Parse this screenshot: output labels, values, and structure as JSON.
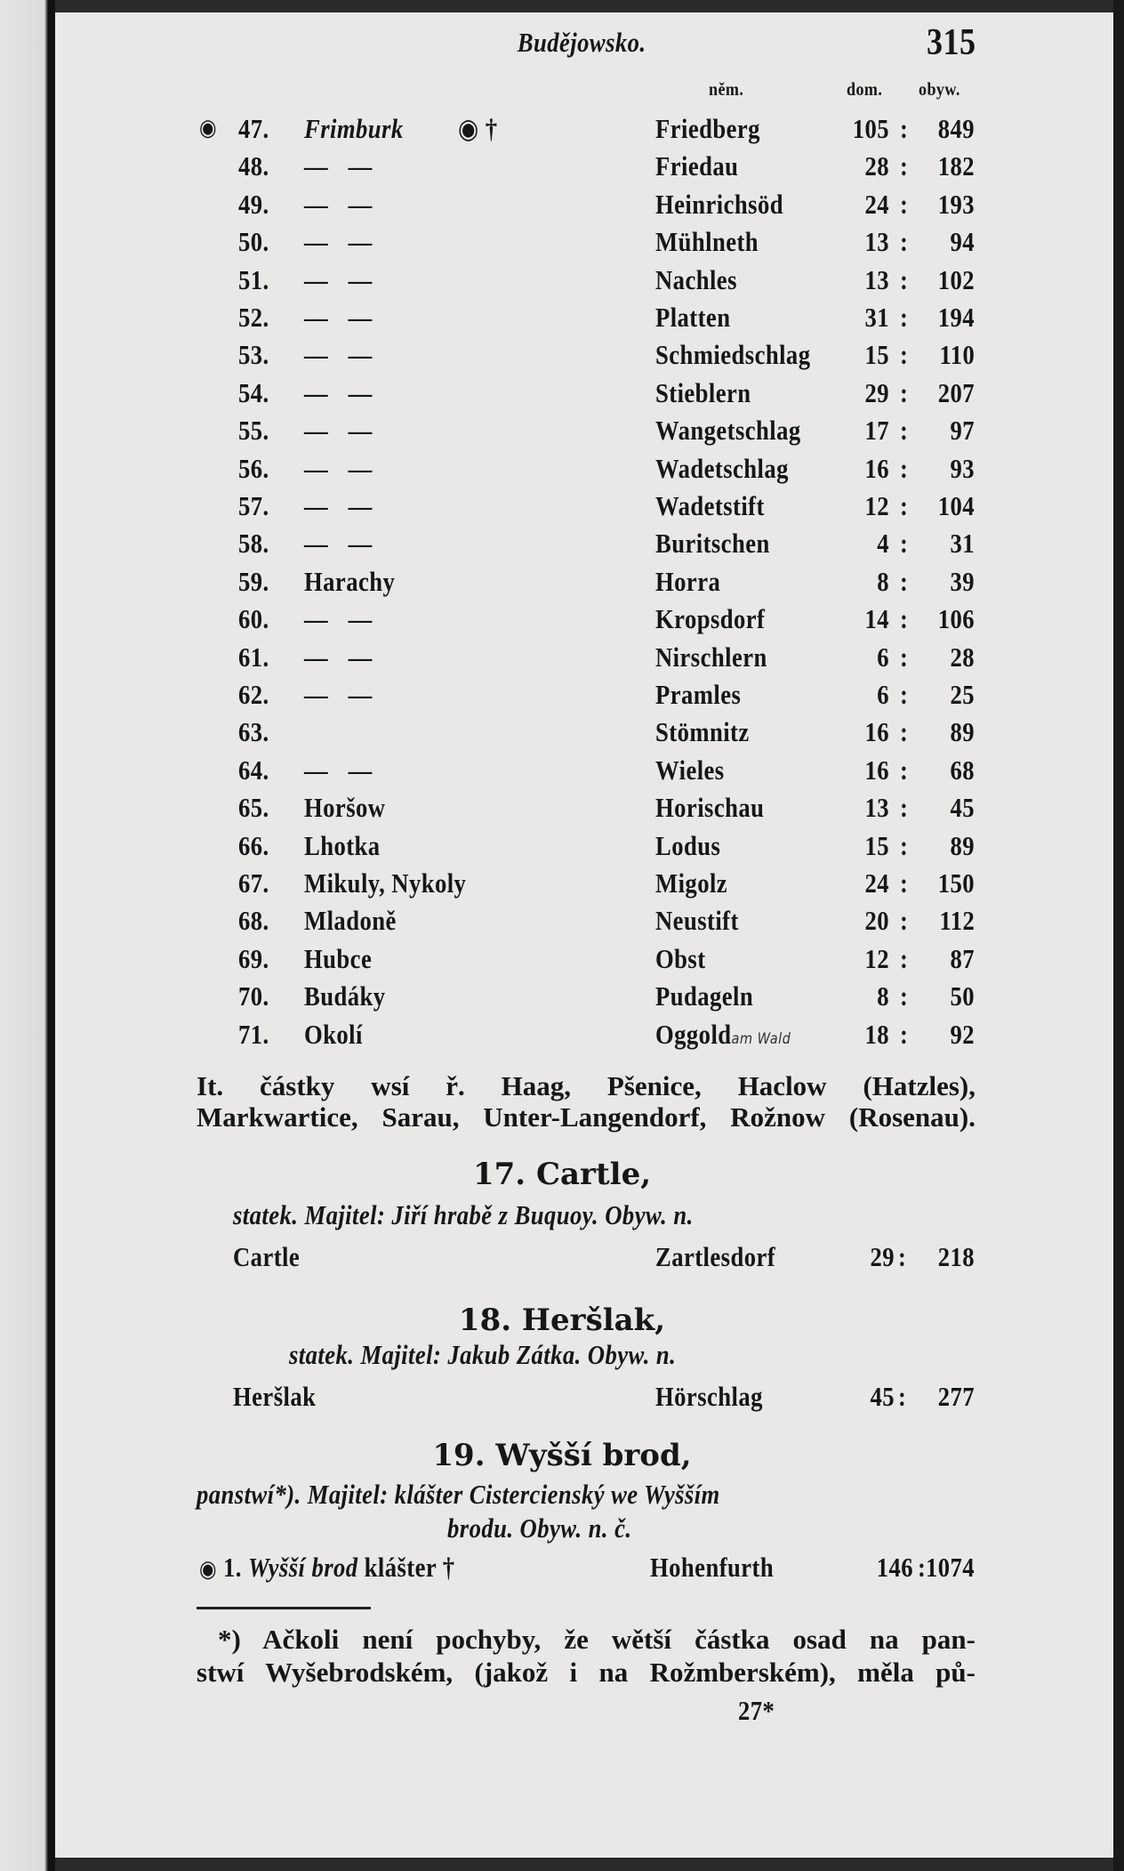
{
  "header": {
    "title": "Budějowsko.",
    "page_number": "315"
  },
  "table": {
    "col_headers": {
      "german": "něm.",
      "houses": "dom.",
      "inhabitants": "obyw."
    },
    "rows": [
      {
        "num": "47.",
        "czech": "Frimburk",
        "german": "Friedberg",
        "dom": "105",
        "obyw": "849",
        "markers": "◉ †",
        "italic": true,
        "lead": "◉"
      },
      {
        "num": "48.",
        "czech": "—   —",
        "german": "Friedau",
        "dom": "28",
        "obyw": "182"
      },
      {
        "num": "49.",
        "czech": "—   —",
        "german": "Heinrichsöd",
        "dom": "24",
        "obyw": "193"
      },
      {
        "num": "50.",
        "czech": "—   —",
        "german": "Mühlneth",
        "dom": "13",
        "obyw": "94"
      },
      {
        "num": "51.",
        "czech": "—   —",
        "german": "Nachles",
        "dom": "13",
        "obyw": "102"
      },
      {
        "num": "52.",
        "czech": "—   —",
        "german": "Platten",
        "dom": "31",
        "obyw": "194"
      },
      {
        "num": "53.",
        "czech": "—   —",
        "german": "Schmiedschlag",
        "dom": "15",
        "obyw": "110"
      },
      {
        "num": "54.",
        "czech": "—   —",
        "german": "Stieblern",
        "dom": "29",
        "obyw": "207"
      },
      {
        "num": "55.",
        "czech": "—   —",
        "german": "Wangetschlag",
        "dom": "17",
        "obyw": "97"
      },
      {
        "num": "56.",
        "czech": "—   —",
        "german": "Wadetschlag",
        "dom": "16",
        "obyw": "93"
      },
      {
        "num": "57.",
        "czech": "—   —",
        "german": "Wadetstift",
        "dom": "12",
        "obyw": "104"
      },
      {
        "num": "58.",
        "czech": "—   —",
        "german": "Buritschen",
        "dom": "4",
        "obyw": "31"
      },
      {
        "num": "59.",
        "czech": "Harachy",
        "german": "Horra",
        "dom": "8",
        "obyw": "39"
      },
      {
        "num": "60.",
        "czech": "—   —",
        "german": "Kropsdorf",
        "dom": "14",
        "obyw": "106"
      },
      {
        "num": "61.",
        "czech": "—   —",
        "german": "Nirschlern",
        "dom": "6",
        "obyw": "28"
      },
      {
        "num": "62.",
        "czech": "—   —",
        "german": "Pramles",
        "dom": "6",
        "obyw": "25"
      },
      {
        "num": "63.",
        "czech": "",
        "german": "Stömnitz",
        "dom": "16",
        "obyw": "89"
      },
      {
        "num": "64.",
        "czech": "—   —",
        "german": "Wieles",
        "dom": "16",
        "obyw": "68"
      },
      {
        "num": "65.",
        "czech": "Horšow",
        "german": "Horischau",
        "dom": "13",
        "obyw": "45"
      },
      {
        "num": "66.",
        "czech": "Lhotka",
        "german": "Lodus",
        "dom": "15",
        "obyw": "89"
      },
      {
        "num": "67.",
        "czech": "Mikuly, Nykoly",
        "german": "Migolz",
        "dom": "24",
        "obyw": "150"
      },
      {
        "num": "68.",
        "czech": "Mladoně",
        "german": "Neustift",
        "dom": "20",
        "obyw": "112"
      },
      {
        "num": "69.",
        "czech": "Hubce",
        "german": "Obst",
        "dom": "12",
        "obyw": "87"
      },
      {
        "num": "70.",
        "czech": "Budáky",
        "german": "Pudageln",
        "dom": "8",
        "obyw": "50"
      },
      {
        "num": "71.",
        "czech": "Okolí",
        "german": "Oggold",
        "dom": "18",
        "obyw": "92",
        "note": "am Wald"
      }
    ],
    "note_lines": [
      "It. částky wsí ř. Haag, Pšenice, Haclow (Hatzles),",
      "Markwartice, Sarau, Unter-Langendorf, Rožnow (Rosenau)."
    ]
  },
  "sections": [
    {
      "heading": "17. Cartle,",
      "subtitle": "statek. Majitel: Jiří hrabě z Buquoy. Obyw. n.",
      "czech": "Cartle",
      "german": "Zartlesdorf",
      "dom": "29",
      "obyw": "218"
    },
    {
      "heading": "18. Heršlak,",
      "subtitle": "statek. Majitel: Jakub Zátka. Obyw. n.",
      "czech": "Heršlak",
      "german": "Hörschlag",
      "dom": "45",
      "obyw": "277"
    },
    {
      "heading": "19. Wyšší brod,",
      "subtitle_1": "panstwí*). Majitel: klášter Cistercienský we Wyšším",
      "subtitle_2": "brodu. Obyw. n. č.",
      "num": "1.",
      "czech_italic": "Wyšší brod",
      "czech": "klášter",
      "markers": "◉ †",
      "german": "Hohenfurth",
      "dom": "146",
      "obyw": "1074"
    }
  ],
  "footnote": {
    "lines": [
      "*) Ačkoli není pochyby, že wětší částka osad na pan-",
      "stwí Wyšebrodském, (jakož i na Rožmberském), měla pů-"
    ],
    "signature": "27*"
  }
}
